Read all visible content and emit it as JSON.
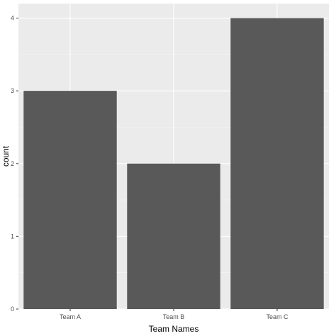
{
  "chart_data": {
    "type": "bar",
    "categories": [
      "Team A",
      "Team B",
      "Team C"
    ],
    "values": [
      3,
      2,
      4
    ],
    "xlabel": "Team Names",
    "ylabel": "count",
    "ylim": [
      0,
      4.2
    ],
    "yticks": [
      0,
      1,
      2,
      3,
      4
    ],
    "grid": true,
    "legend": "none"
  },
  "colors": {
    "panel_background": "#EBEBEB",
    "grid_major": "#FFFFFF",
    "grid_minor": "#F5F5F5",
    "bar_fill": "#595959",
    "tick_mark": "#333333"
  }
}
